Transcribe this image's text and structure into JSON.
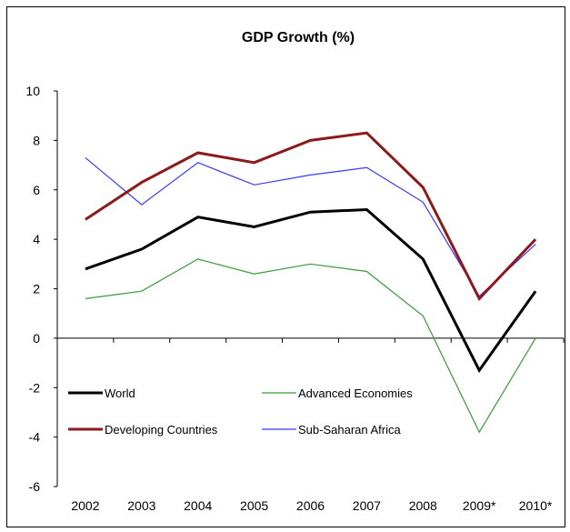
{
  "chart_data": {
    "type": "line",
    "title": "GDP Growth (%)",
    "xlabel": "",
    "ylabel": "",
    "categories": [
      "2002",
      "2003",
      "2004",
      "2005",
      "2006",
      "2007",
      "2008",
      "2009*",
      "2010*"
    ],
    "ylim": [
      -6,
      10
    ],
    "yticks": [
      10,
      8,
      6,
      4,
      2,
      0,
      -2,
      -4,
      -6
    ],
    "grid": false,
    "legend_position": "bottom-left, inside plot",
    "series": [
      {
        "name": "World",
        "color": "#000000",
        "values": [
          2.8,
          3.6,
          4.9,
          4.5,
          5.1,
          5.2,
          3.2,
          -1.3,
          1.9
        ]
      },
      {
        "name": "Advanced Economies",
        "color": "#3a9a3a",
        "values": [
          1.6,
          1.9,
          3.2,
          2.6,
          3.0,
          2.7,
          0.9,
          -3.8,
          0.0
        ]
      },
      {
        "name": "Developing Countries",
        "color": "#8b1a1a",
        "values": [
          4.8,
          6.3,
          7.5,
          7.1,
          8.0,
          8.3,
          6.1,
          1.6,
          4.0
        ]
      },
      {
        "name": "Sub-Saharan Africa",
        "color": "#3a3aff",
        "values": [
          7.3,
          5.4,
          7.1,
          6.2,
          6.6,
          6.9,
          5.5,
          1.7,
          3.8
        ]
      }
    ]
  }
}
